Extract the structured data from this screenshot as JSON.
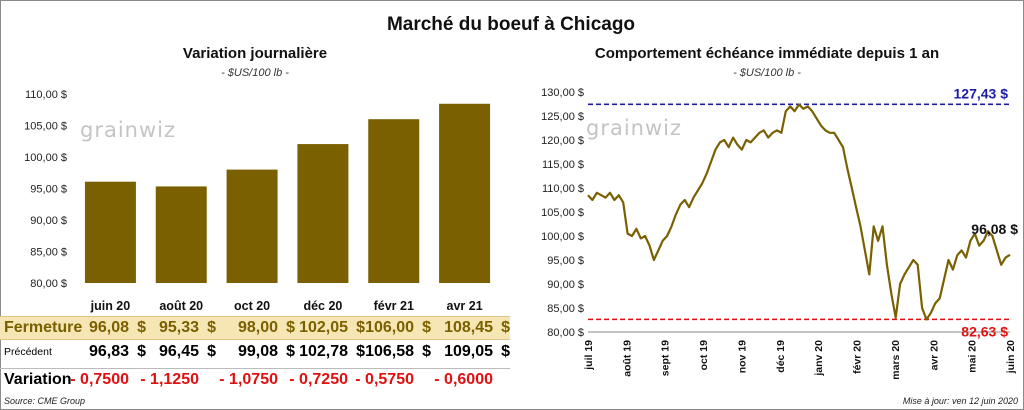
{
  "title": "Marché du boeuf à Chicago",
  "left_chart": {
    "title": "Variation  journalière",
    "subtitle": "- $US/100 lb -",
    "logo": "grainwiz"
  },
  "right_chart": {
    "title": "Comportement  échéance immédiate depuis 1 an",
    "subtitle": "- $US/100 lb -",
    "logo": "grainwiz",
    "max_label": "127,43 $",
    "min_label": "82,63 $",
    "last_label": "96,08 $"
  },
  "table": {
    "rows": [
      {
        "label": "Fermeture",
        "values": [
          "96,08",
          "95,33",
          "98,00",
          "102,05",
          "106,00",
          "108,45"
        ],
        "unit": "$"
      },
      {
        "label": "Précédent",
        "values": [
          "96,83",
          "96,45",
          "99,08",
          "102,78",
          "106,58",
          "109,05"
        ],
        "unit": "$"
      },
      {
        "label": "Variation",
        "values": [
          "- 0,7500",
          "- 1,1250",
          "- 1,0750",
          "- 0,7250",
          "- 0,5750",
          "- 0,6000"
        ],
        "unit": ""
      }
    ]
  },
  "footer": {
    "source": "Source: CME Group",
    "update": "Mise à jour: ven 12 juin 2020"
  },
  "colors": {
    "bar": "#7a6000",
    "line": "#7a6000",
    "max_line": "#1c1ca8",
    "min_line": "#e01010",
    "fermeture_bg": "#f6e6b4",
    "fermeture_text": "#7a6000",
    "variation_text": "#e01010"
  },
  "chart_data": [
    {
      "type": "bar",
      "categories": [
        "juin 20",
        "août 20",
        "oct 20",
        "déc 20",
        "févr 21",
        "avr 21"
      ],
      "values": [
        96.08,
        95.33,
        98.0,
        102.05,
        106.0,
        108.45
      ],
      "ylim": [
        80,
        110
      ],
      "yticks": [
        80,
        85,
        90,
        95,
        100,
        105,
        110
      ],
      "ytick_labels": [
        "80,00 $",
        "85,00 $",
        "90,00 $",
        "95,00 $",
        "100,00 $",
        "105,00 $",
        "110,00 $"
      ],
      "grid": false
    },
    {
      "type": "line",
      "x_labels": [
        "juil 19",
        "août 19",
        "sept 19",
        "oct 19",
        "nov 19",
        "déc 19",
        "janv 20",
        "févr 20",
        "mars 20",
        "avr 20",
        "mai 20",
        "juin 20"
      ],
      "ylim": [
        80,
        130
      ],
      "yticks": [
        80,
        85,
        90,
        95,
        100,
        105,
        110,
        115,
        120,
        125,
        130
      ],
      "ytick_labels": [
        "80,00 $",
        "85,00 $",
        "90,00 $",
        "95,00 $",
        "100,00 $",
        "105,00 $",
        "110,00 $",
        "115,00 $",
        "120,00 $",
        "125,00 $",
        "130,00 $"
      ],
      "series": [
        {
          "values": [
            108.5,
            107.5,
            109.0,
            108.5,
            108.0,
            109.0,
            107.5,
            108.5,
            107.0,
            100.5,
            100.0,
            101.5,
            99.5,
            100.0,
            98.0,
            95.0,
            97.0,
            99.0,
            100.0,
            102.0,
            104.5,
            106.5,
            107.5,
            106.0,
            108.0,
            109.5,
            111.0,
            113.0,
            115.5,
            118.0,
            119.5,
            120.0,
            118.5,
            120.5,
            119.0,
            118.0,
            120.0,
            119.5,
            120.5,
            121.5,
            122.0,
            120.5,
            121.5,
            122.0,
            121.5,
            126.0,
            127.0,
            126.0,
            127.4,
            126.5,
            127.0,
            126.0,
            124.5,
            123.0,
            122.0,
            121.5,
            121.5,
            120.0,
            118.5,
            114.0,
            110.0,
            106.0,
            102.0,
            97.0,
            92.0,
            102.0,
            99.0,
            102.0,
            94.0,
            88.0,
            83.0,
            90.0,
            92.0,
            93.5,
            95.0,
            94.0,
            85.0,
            82.6,
            84.0,
            86.0,
            87.0,
            91.0,
            95.0,
            93.0,
            96.0,
            97.0,
            95.5,
            99.0,
            100.5,
            98.0,
            99.0,
            101.0,
            100.0,
            97.0,
            94.0,
            95.5,
            96.08
          ],
          "max": 127.43,
          "min": 82.63,
          "last": 96.08
        }
      ],
      "grid": false
    }
  ]
}
